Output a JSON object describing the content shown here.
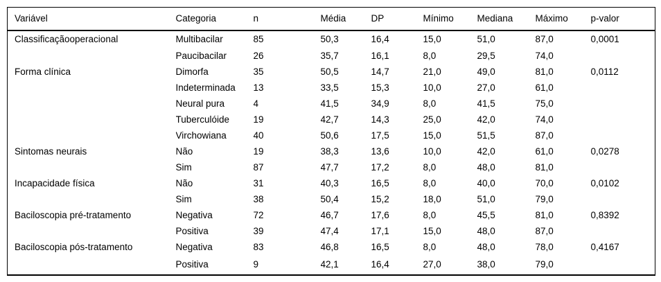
{
  "table": {
    "columns": [
      "Variável",
      "Categoria",
      "n",
      "Média",
      "DP",
      "Mínimo",
      "Mediana",
      "Máximo",
      "p-valor"
    ],
    "rows": [
      [
        "Classificaçãooperacional",
        "Multibacilar",
        "85",
        "50,3",
        "16,4",
        "15,0",
        "51,0",
        "87,0",
        "0,0001"
      ],
      [
        "",
        "Paucibacilar",
        "26",
        "35,7",
        "16,1",
        "8,0",
        "29,5",
        "74,0",
        ""
      ],
      [
        "Forma clínica",
        "Dimorfa",
        "35",
        "50,5",
        "14,7",
        "21,0",
        "49,0",
        "81,0",
        "0,0112"
      ],
      [
        "",
        "Indeterminada",
        "13",
        "33,5",
        "15,3",
        "10,0",
        "27,0",
        "61,0",
        ""
      ],
      [
        "",
        "Neural pura",
        "4",
        "41,5",
        "34,9",
        "8,0",
        "41,5",
        "75,0",
        ""
      ],
      [
        "",
        "Tuberculóide",
        "19",
        "42,7",
        "14,3",
        "25,0",
        "42,0",
        "74,0",
        ""
      ],
      [
        "",
        "Virchowiana",
        "40",
        "50,6",
        "17,5",
        "15,0",
        "51,5",
        "87,0",
        ""
      ],
      [
        "Sintomas neurais",
        "Não",
        "19",
        "38,3",
        "13,6",
        "10,0",
        "42,0",
        "61,0",
        "0,0278"
      ],
      [
        "",
        "Sim",
        "87",
        "47,7",
        "17,2",
        "8,0",
        "48,0",
        "81,0",
        ""
      ],
      [
        "Incapacidade física",
        "Não",
        "31",
        "40,3",
        "16,5",
        "8,0",
        "40,0",
        "70,0",
        "0,0102"
      ],
      [
        "",
        "Sim",
        "38",
        "50,4",
        "15,2",
        "18,0",
        "51,0",
        "79,0",
        ""
      ],
      [
        "Baciloscopia pré-tratamento",
        "Negativa",
        "72",
        "46,7",
        "17,6",
        "8,0",
        "45,5",
        "81,0",
        "0,8392"
      ],
      [
        "",
        "Positiva",
        "39",
        "47,4",
        "17,1",
        "15,0",
        "48,0",
        "87,0",
        ""
      ],
      [
        "Baciloscopia pós-tratamento",
        "Negativa",
        "83",
        "46,8",
        "16,5",
        "8,0",
        "48,0",
        "78,0",
        "0,4167"
      ],
      [
        "",
        "Positiva",
        "9",
        "42,1",
        "16,4",
        "27,0",
        "38,0",
        "79,0",
        ""
      ]
    ]
  },
  "colors": {
    "text": "#000000",
    "rule": "#000000",
    "background": "#ffffff"
  }
}
